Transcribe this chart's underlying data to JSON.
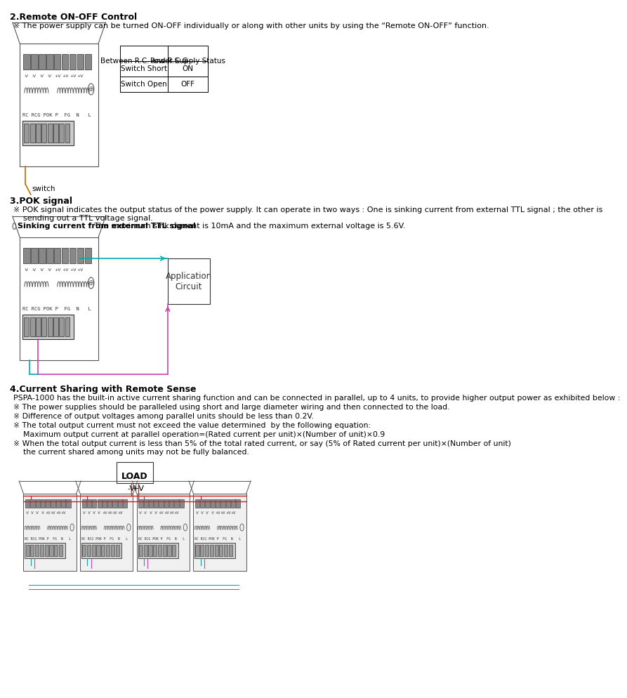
{
  "bg_color": "#ffffff",
  "section2_title": "2.Remote ON-OFF Control",
  "section2_note": "※ The power supply can be turned ON-OFF individually or along with other units by using the “Remote ON-OFF” function.",
  "table_headers": [
    "Between R.C. and R.C.G",
    "Power Supply Status"
  ],
  "table_rows": [
    [
      "Switch Short",
      "ON"
    ],
    [
      "Switch Open",
      "OFF"
    ]
  ],
  "section3_title": "3.POK signal",
  "section3_note1": "※ POK signal indicates the output status of the power supply. It can operate in two ways : One is sinking current from external TTL signal ; the other is\n    sending out a TTL voltage signal.",
  "section3_note2_bold": "Sinking current from external TTL signal",
  "section3_note2_rest": ": The maximum sink current is 10mA and the maximum external voltage is 5.6V.",
  "section4_title": "4.Current Sharing with Remote Sense",
  "section4_lines": [
    "PSPA-1000 has the built-in active current sharing function and can be connected in parallel, up to 4 units, to provide higher output power as exhibited below :",
    "※ The power supplies should be paralleled using short and large diameter wiring and then connected to the load.",
    "※ Difference of output voltages among parallel units should be less than 0.2V.",
    "※ The total output current must not exceed the value determined  by the following equation:",
    "    Maximum output current at parallel operation=(Rated current per unit)×(Number of unit)×0.9",
    "※ When the total output current is less than 5% of the total rated current, or say (5% of Rated current per unit)×(Number of unit)\n    the current shared among units may not be fully balanced."
  ],
  "app_circuit_label": "Application\nCircuit",
  "load_label": "LOAD",
  "switch_label": "switch",
  "teal_color": "#00AAAA",
  "pink_color": "#CC44AA",
  "red_color": "#CC0000",
  "orange_color": "#CC6600"
}
